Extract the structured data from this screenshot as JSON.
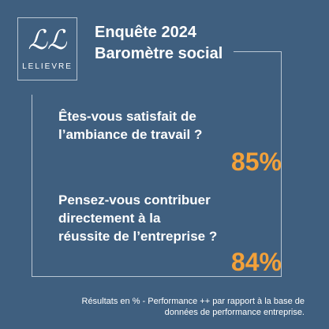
{
  "logo": {
    "monogram": "ℒℒ",
    "wordmark": "LELIEVRE"
  },
  "header": {
    "line1": "Enquête 2024",
    "line2": "Baromètre social"
  },
  "questions": [
    {
      "line1": "Êtes-vous satisfait de",
      "line2": "l’ambiance de travail ?",
      "line3": "",
      "percent": "85%"
    },
    {
      "line1": "Pensez-vous contribuer",
      "line2": "directement à la",
      "line3": "réussite de l’entreprise ?",
      "percent": "84%"
    }
  ],
  "footnote": {
    "line1": "Résultats en % - Performance ++ par rapport à la base de",
    "line2": "données de performance entreprise."
  },
  "colors": {
    "background": "#3f5f7f",
    "accent": "#f2a13a",
    "text": "#ffffff",
    "frame": "#b9c6d3"
  }
}
